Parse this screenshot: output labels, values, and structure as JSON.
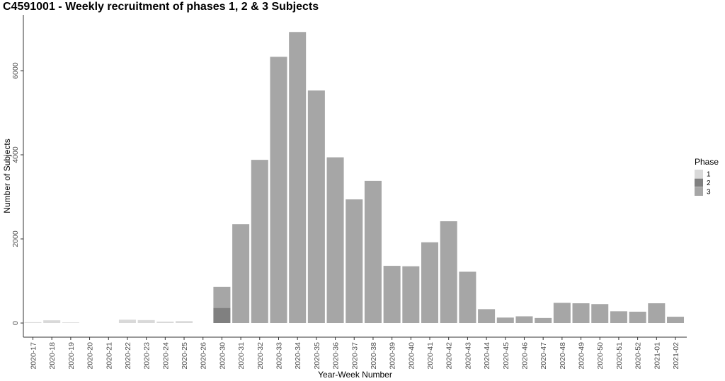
{
  "chart_data": {
    "type": "bar",
    "stacked": true,
    "title": "C4591001 - Weekly recruitment of phases 1, 2 & 3 Subjects",
    "xlabel": "Year-Week Number",
    "ylabel": "Number of Subjects",
    "ylim": [
      0,
      7200
    ],
    "yticks": [
      0,
      2000,
      4000,
      6000
    ],
    "grid": false,
    "legend": {
      "title": "Phase",
      "position": "right"
    },
    "categories": [
      "2020-17",
      "2020-18",
      "2020-19",
      "2020-20",
      "2020-21",
      "2020-22",
      "2020-23",
      "2020-24",
      "2020-25",
      "2020-26",
      "2020-30",
      "2020-31",
      "2020-32",
      "2020-33",
      "2020-34",
      "2020-35",
      "2020-36",
      "2020-37",
      "2020-38",
      "2020-39",
      "2020-40",
      "2020-41",
      "2020-42",
      "2020-43",
      "2020-44",
      "2020-45",
      "2020-46",
      "2020-47",
      "2020-48",
      "2020-49",
      "2020-50",
      "2020-51",
      "2020-52",
      "2021-01",
      "2021-02"
    ],
    "series": [
      {
        "name": "1",
        "color": "#d9d9d9",
        "values": [
          20,
          65,
          15,
          0,
          0,
          80,
          70,
          35,
          45,
          0,
          0,
          0,
          0,
          0,
          0,
          0,
          0,
          0,
          0,
          0,
          0,
          0,
          0,
          0,
          0,
          0,
          0,
          0,
          0,
          0,
          0,
          0,
          0,
          0,
          0
        ]
      },
      {
        "name": "2",
        "color": "#808080",
        "values": [
          0,
          0,
          0,
          0,
          0,
          0,
          0,
          0,
          0,
          0,
          360,
          0,
          0,
          0,
          0,
          0,
          0,
          0,
          0,
          0,
          0,
          0,
          0,
          0,
          0,
          0,
          0,
          0,
          0,
          0,
          0,
          0,
          0,
          0,
          0
        ]
      },
      {
        "name": "3",
        "color": "#a6a6a6",
        "values": [
          0,
          0,
          0,
          0,
          0,
          0,
          0,
          0,
          0,
          0,
          500,
          2350,
          3880,
          6330,
          6920,
          5530,
          3940,
          2940,
          3380,
          1360,
          1350,
          1920,
          2420,
          1220,
          330,
          130,
          160,
          120,
          480,
          470,
          450,
          280,
          270,
          470,
          150
        ]
      }
    ]
  }
}
